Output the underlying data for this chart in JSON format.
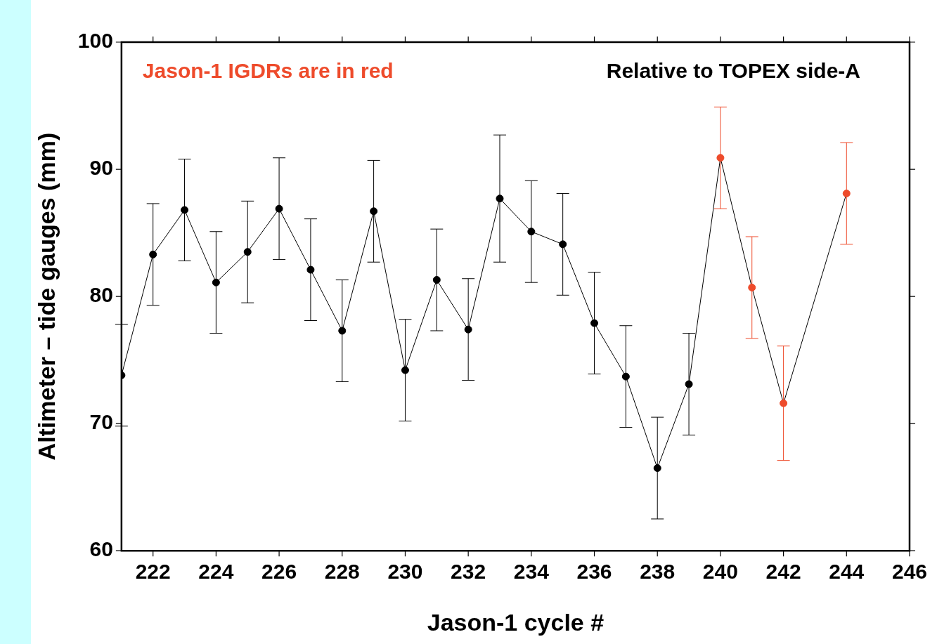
{
  "chart_data": {
    "type": "line",
    "xlabel": "Jason-1 cycle #",
    "ylabel": "Altimeter – tide gauges (mm)",
    "annotations": [
      "Jason-1 IGDRs are in red",
      "Relative to TOPEX side-A"
    ],
    "x": [
      221,
      222,
      223,
      224,
      225,
      226,
      227,
      228,
      229,
      230,
      231,
      232,
      233,
      234,
      235,
      236,
      237,
      238,
      239,
      240,
      241,
      242,
      244
    ],
    "series": [
      {
        "color": "#000000",
        "values": [
          73.8,
          83.3,
          86.8,
          81.1,
          83.5,
          86.9,
          82.1,
          77.3,
          86.7,
          74.2,
          81.3,
          77.4,
          87.7,
          85.1,
          84.1,
          77.9,
          73.7,
          66.5,
          73.1,
          90.9,
          80.7,
          71.6,
          88.1
        ],
        "colors": [
          "#000000",
          "#000000",
          "#000000",
          "#000000",
          "#000000",
          "#000000",
          "#000000",
          "#000000",
          "#000000",
          "#000000",
          "#000000",
          "#000000",
          "#000000",
          "#000000",
          "#000000",
          "#000000",
          "#000000",
          "#000000",
          "#000000",
          "#ee4b2b",
          "#ee4b2b",
          "#ee4b2b",
          "#ee4b2b"
        ],
        "errors": [
          4,
          4,
          4,
          4,
          4,
          4,
          4,
          4,
          4,
          4,
          4,
          4,
          5,
          4,
          4,
          4,
          4,
          4,
          4,
          4,
          4,
          4.5,
          4
        ]
      }
    ],
    "xlim": [
      221,
      246
    ],
    "xticks": [
      222,
      224,
      226,
      228,
      230,
      232,
      234,
      236,
      238,
      240,
      242,
      244,
      246
    ],
    "ylim": [
      60,
      100
    ],
    "yticks": [
      60,
      70,
      80,
      90,
      100
    ],
    "grid": false,
    "legend": false,
    "marker": "circle",
    "line_style": "solid"
  }
}
